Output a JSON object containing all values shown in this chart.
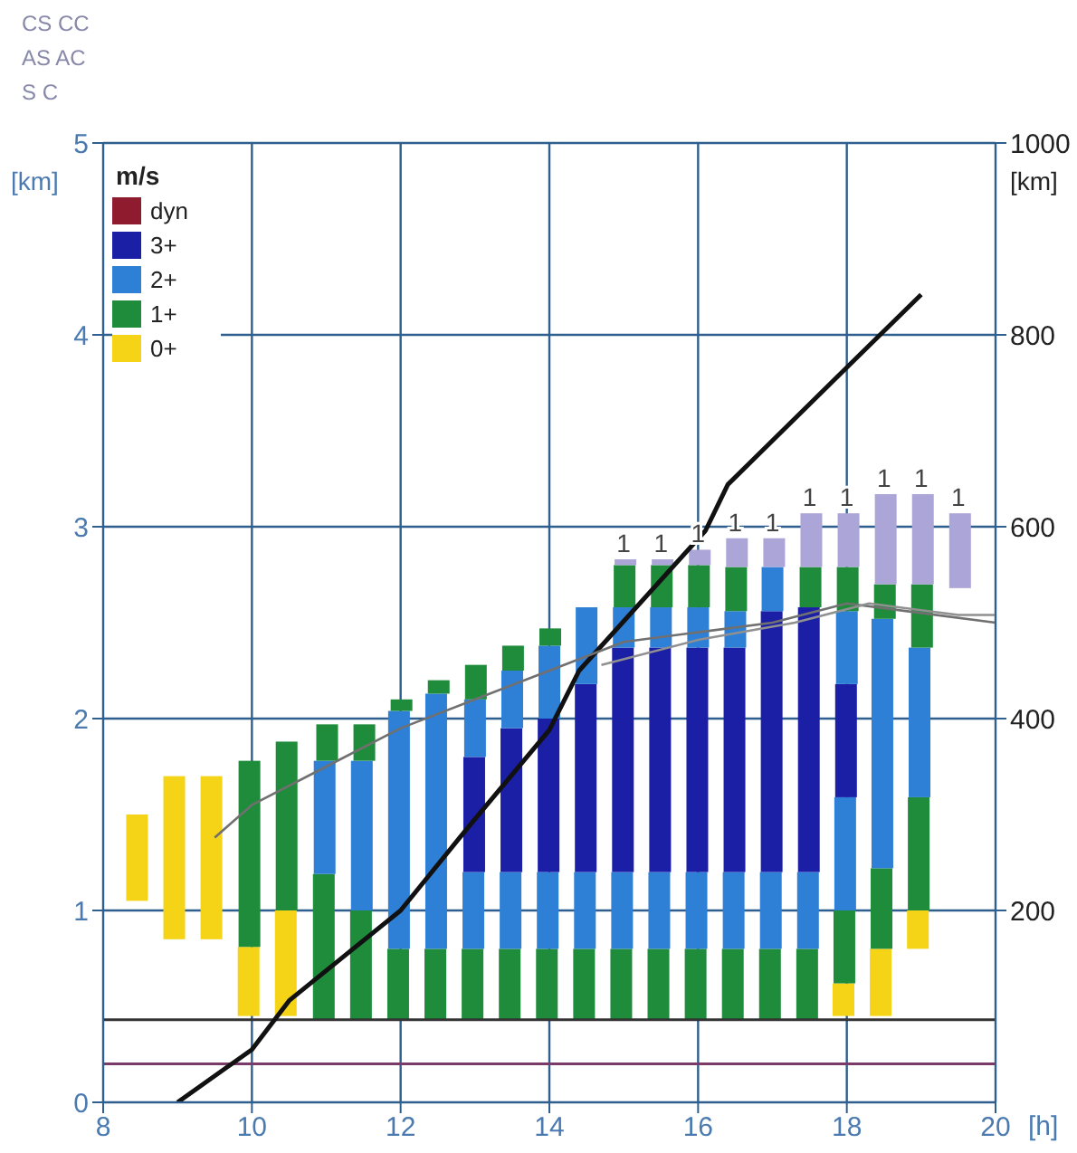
{
  "chart_data": {
    "type": "bar",
    "xlabel": "[h]",
    "ylabel": "[km]",
    "y2label": "[km]",
    "legend_title": "m/s",
    "legend": "top left",
    "grid": true,
    "annotations": [
      "CS CC",
      "AS AC",
      "S C",
      {
        "text": "1",
        "x": 15,
        "y": 2.83
      },
      {
        "text": "1",
        "x": 15.5,
        "y": 2.83
      },
      {
        "text": "1",
        "x": 16,
        "y": 2.88
      },
      {
        "text": "1",
        "x": 16.5,
        "y": 2.94
      },
      {
        "text": "1",
        "x": 17,
        "y": 2.94
      },
      {
        "text": "1",
        "x": 17.5,
        "y": 3.07
      },
      {
        "text": "1",
        "x": 18,
        "y": 3.07
      },
      {
        "text": "1",
        "x": 18.5,
        "y": 3.17
      },
      {
        "text": "1",
        "x": 19,
        "y": 3.17
      },
      {
        "text": "1",
        "x": 19.5,
        "y": 3.07
      }
    ],
    "x": [
      8.5,
      9,
      9.5,
      10,
      10.5,
      11,
      11.5,
      12,
      12.5,
      13,
      13.5,
      14,
      14.5,
      15,
      15.5,
      16,
      16.5,
      17,
      17.5,
      18,
      18.5,
      19,
      19.5
    ],
    "xlim": [
      8,
      20
    ],
    "xticks": [
      8,
      10,
      12,
      14,
      16,
      18,
      20
    ],
    "ylim": [
      0,
      5
    ],
    "yticks": [
      0,
      1,
      2,
      3,
      4,
      5
    ],
    "y2lim": [
      0,
      1000
    ],
    "y2ticks": [
      200,
      400,
      600,
      800,
      1000
    ],
    "ref_lines": [
      {
        "axis": "y",
        "value": 0.43,
        "color": "#333333"
      },
      {
        "axis": "y",
        "value": 0.2,
        "color": "#7a3a6a"
      }
    ],
    "series": [
      {
        "name": "0+",
        "color": "#f5d417",
        "base": [
          1.05,
          0.85,
          0.85,
          0.45,
          0.45,
          null,
          null,
          null,
          null,
          null,
          null,
          null,
          null,
          null,
          null,
          null,
          null,
          null,
          null,
          0.45,
          0.45,
          0.8,
          null
        ],
        "values": [
          0.45,
          0.85,
          0.85,
          0.36,
          0.55,
          null,
          null,
          null,
          null,
          null,
          null,
          null,
          null,
          null,
          null,
          null,
          null,
          null,
          null,
          0.17,
          0.35,
          0.2,
          null
        ]
      },
      {
        "name": "1+",
        "color": "#1e8c3a",
        "base": [
          null,
          null,
          null,
          0.81,
          1.0,
          0.43,
          0.43,
          0.43,
          0.43,
          0.43,
          0.43,
          0.43,
          0.43,
          0.43,
          0.43,
          0.43,
          0.43,
          0.43,
          0.43,
          0.62,
          0.8,
          1.0,
          null
        ],
        "values": [
          null,
          null,
          null,
          0.97,
          0.88,
          0.76,
          0.57,
          0.37,
          0.37,
          0.37,
          0.37,
          0.37,
          0.37,
          0.37,
          0.37,
          0.37,
          0.37,
          0.37,
          0.37,
          0.38,
          0.42,
          0.59,
          null
        ]
      },
      {
        "name": "2+",
        "color": "#2e7fd6",
        "base": [
          null,
          null,
          null,
          null,
          null,
          1.19,
          1.0,
          0.8,
          0.8,
          0.8,
          0.8,
          0.8,
          0.8,
          0.8,
          0.8,
          0.8,
          0.8,
          0.8,
          0.8,
          1.0,
          1.22,
          1.59,
          null
        ],
        "values": [
          null,
          null,
          null,
          null,
          null,
          0.59,
          0.78,
          1.24,
          1.33,
          0.4,
          0.4,
          0.4,
          0.4,
          0.4,
          0.4,
          0.4,
          0.4,
          0.4,
          0.4,
          0.59,
          1.3,
          0.78,
          null
        ]
      },
      {
        "name": "3+",
        "color": "#1a1fa6",
        "base": [
          null,
          null,
          null,
          null,
          null,
          null,
          null,
          null,
          null,
          1.2,
          1.2,
          1.2,
          1.2,
          1.2,
          1.2,
          1.2,
          1.2,
          1.2,
          1.2,
          1.59,
          null,
          null,
          null
        ],
        "values": [
          null,
          null,
          null,
          null,
          null,
          null,
          null,
          null,
          null,
          0.6,
          0.75,
          0.8,
          0.98,
          1.17,
          1.17,
          1.17,
          1.17,
          1.36,
          1.38,
          0.59,
          null,
          null,
          null
        ]
      },
      {
        "color": "#2e7fd6",
        "base": [
          null,
          null,
          null,
          null,
          null,
          null,
          null,
          null,
          null,
          1.8,
          1.95,
          2.0,
          2.18,
          2.37,
          2.37,
          2.37,
          2.37,
          2.56,
          null,
          2.18,
          null,
          null,
          null
        ],
        "values": [
          null,
          null,
          null,
          null,
          null,
          null,
          null,
          null,
          null,
          0.3,
          0.3,
          0.38,
          0.4,
          0.21,
          0.21,
          0.21,
          0.19,
          0.23,
          null,
          0.38,
          null,
          null,
          null
        ]
      },
      {
        "color": "#1e8c3a",
        "base": [
          null,
          null,
          null,
          null,
          null,
          1.78,
          1.78,
          2.04,
          2.13,
          2.1,
          2.25,
          2.38,
          null,
          2.58,
          2.58,
          2.58,
          2.56,
          null,
          2.58,
          2.56,
          2.52,
          2.37,
          null
        ],
        "values": [
          null,
          null,
          null,
          null,
          null,
          0.19,
          0.19,
          0.06,
          0.07,
          0.18,
          0.13,
          0.09,
          null,
          0.22,
          0.22,
          0.22,
          0.23,
          null,
          0.21,
          0.23,
          0.18,
          0.33,
          null
        ]
      },
      {
        "color": "#aca5d8",
        "base": [
          null,
          null,
          null,
          null,
          null,
          null,
          null,
          null,
          null,
          null,
          null,
          null,
          null,
          2.8,
          2.8,
          2.8,
          2.79,
          2.79,
          2.79,
          2.79,
          2.7,
          2.7,
          2.68
        ],
        "values": [
          null,
          null,
          null,
          null,
          null,
          null,
          null,
          null,
          null,
          null,
          null,
          null,
          null,
          0.03,
          0.03,
          0.08,
          0.15,
          0.15,
          0.28,
          0.28,
          0.47,
          0.47,
          0.39
        ]
      },
      {
        "name": "dyn",
        "color": "#8e1b2e",
        "values": [
          null,
          null,
          null,
          null,
          null,
          null,
          null,
          null,
          null,
          null,
          null,
          null,
          null,
          null,
          null,
          null,
          null,
          null,
          null,
          null,
          null,
          null,
          null
        ]
      },
      {
        "type": "line",
        "axis": "y2",
        "color": "#111111",
        "x": [
          9,
          10,
          10.5,
          12,
          12.9,
          14,
          14.4,
          16.1,
          16.4,
          18,
          19
        ],
        "values": [
          0,
          55,
          106,
          200,
          286,
          388,
          450,
          596,
          644,
          766,
          842
        ]
      },
      {
        "type": "line",
        "color": "#707070",
        "x": [
          9.5,
          10,
          11,
          12,
          13,
          14,
          15,
          16,
          17,
          18,
          19,
          20
        ],
        "values": [
          1.38,
          1.55,
          1.75,
          1.95,
          2.1,
          2.25,
          2.4,
          2.45,
          2.5,
          2.6,
          2.55,
          2.5
        ]
      },
      {
        "type": "line",
        "color": "#909090",
        "x": [
          14.7,
          16,
          17.3,
          18.3,
          19.5,
          20
        ],
        "values": [
          2.28,
          2.41,
          2.5,
          2.6,
          2.54,
          2.54
        ]
      }
    ]
  }
}
